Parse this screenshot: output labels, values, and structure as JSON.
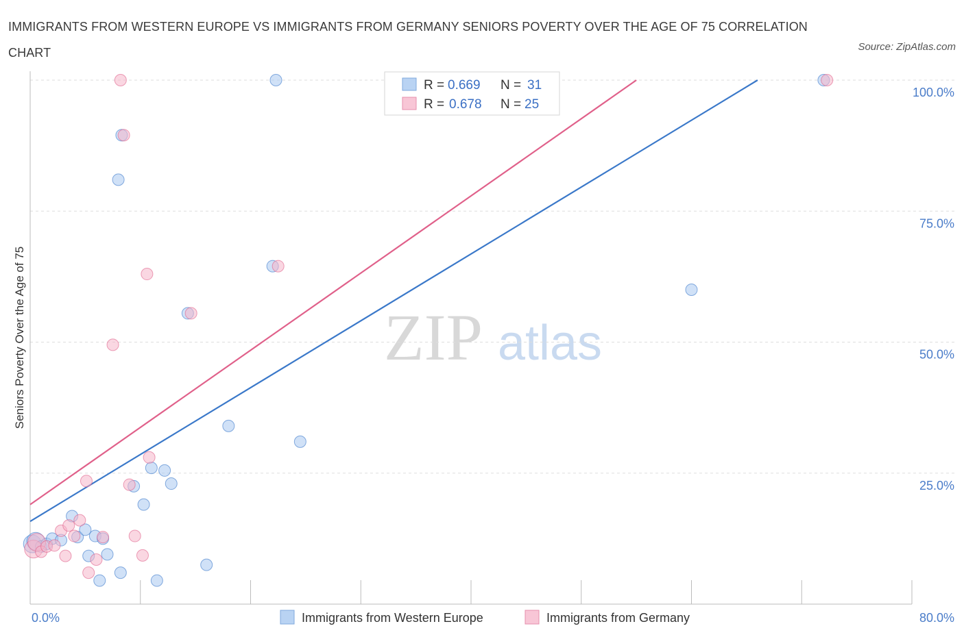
{
  "title": "IMMIGRANTS FROM WESTERN EUROPE VS IMMIGRANTS FROM GERMANY SENIORS POVERTY OVER THE AGE OF 75 CORRELATION CHART",
  "source": "Source: ZipAtlas.com",
  "watermark": {
    "zip": "ZIP",
    "atlas": "atlas"
  },
  "colors": {
    "blue": "#3a78c9",
    "blue_fill": "#a9c8f0",
    "pink": "#e0608a",
    "pink_fill": "#f5b6cb",
    "tick": "#4a7cc9"
  },
  "legend": {
    "r_label": "R =",
    "n_label": "N =",
    "series1": {
      "r": "0.669",
      "n": "31"
    },
    "series2": {
      "r": "0.678",
      "n": "25"
    }
  },
  "chart_data": {
    "type": "scatter",
    "xlabel": "",
    "ylabel": "Seniors Poverty Over the Age of 75",
    "xlim": [
      0,
      80
    ],
    "ylim": [
      0,
      100
    ],
    "x_tick_labels": [
      "0.0%",
      "80.0%"
    ],
    "y_tick_labels": [
      "25.0%",
      "50.0%",
      "75.0%",
      "100.0%"
    ],
    "y_ticks": [
      25,
      50,
      75,
      100
    ],
    "series": [
      {
        "name": "Immigrants from Western Europe",
        "color": "#3a78c9",
        "r": 0.669,
        "n": 31,
        "trend": {
          "x1": 0,
          "y1": 15.8,
          "x2": 66,
          "y2": 100
        },
        "points": [
          [
            0.2,
            11.5
          ],
          [
            0.5,
            12.0
          ],
          [
            1.0,
            11.0
          ],
          [
            1.5,
            11.5
          ],
          [
            2.0,
            12.5
          ],
          [
            2.8,
            12.2
          ],
          [
            3.8,
            16.8
          ],
          [
            4.3,
            12.8
          ],
          [
            5.0,
            14.2
          ],
          [
            5.3,
            9.2
          ],
          [
            5.9,
            13.0
          ],
          [
            6.6,
            12.5
          ],
          [
            7.0,
            9.5
          ],
          [
            6.3,
            4.5
          ],
          [
            8.2,
            6.0
          ],
          [
            9.4,
            22.5
          ],
          [
            10.3,
            19.0
          ],
          [
            11.0,
            26.0
          ],
          [
            11.5,
            4.5
          ],
          [
            12.2,
            25.5
          ],
          [
            12.8,
            23.0
          ],
          [
            14.3,
            55.5
          ],
          [
            16.0,
            7.5
          ],
          [
            18.0,
            34.0
          ],
          [
            22.0,
            64.5
          ],
          [
            24.5,
            31.0
          ],
          [
            8.0,
            81.0
          ],
          [
            8.3,
            89.5
          ],
          [
            22.3,
            100.0
          ],
          [
            60.0,
            60.0
          ],
          [
            72.0,
            100.0
          ]
        ]
      },
      {
        "name": "Immigrants from Germany",
        "color": "#e0608a",
        "r": 0.678,
        "n": 25,
        "trend": {
          "x1": 0,
          "y1": 19.0,
          "x2": 55,
          "y2": 100
        },
        "points": [
          [
            0.3,
            10.5
          ],
          [
            0.6,
            11.8
          ],
          [
            1.0,
            10.0
          ],
          [
            1.5,
            11.0
          ],
          [
            2.2,
            11.2
          ],
          [
            2.8,
            14.0
          ],
          [
            3.2,
            9.2
          ],
          [
            3.5,
            15.0
          ],
          [
            4.0,
            13.0
          ],
          [
            4.5,
            16.0
          ],
          [
            5.1,
            23.5
          ],
          [
            5.3,
            6.0
          ],
          [
            6.0,
            8.5
          ],
          [
            6.6,
            12.8
          ],
          [
            7.5,
            49.5
          ],
          [
            8.2,
            100.0
          ],
          [
            8.5,
            89.5
          ],
          [
            9.0,
            22.8
          ],
          [
            9.5,
            13.0
          ],
          [
            10.2,
            9.3
          ],
          [
            10.6,
            63.0
          ],
          [
            10.8,
            28.0
          ],
          [
            14.6,
            55.5
          ],
          [
            22.5,
            64.5
          ],
          [
            72.3,
            100.0
          ]
        ]
      }
    ]
  }
}
